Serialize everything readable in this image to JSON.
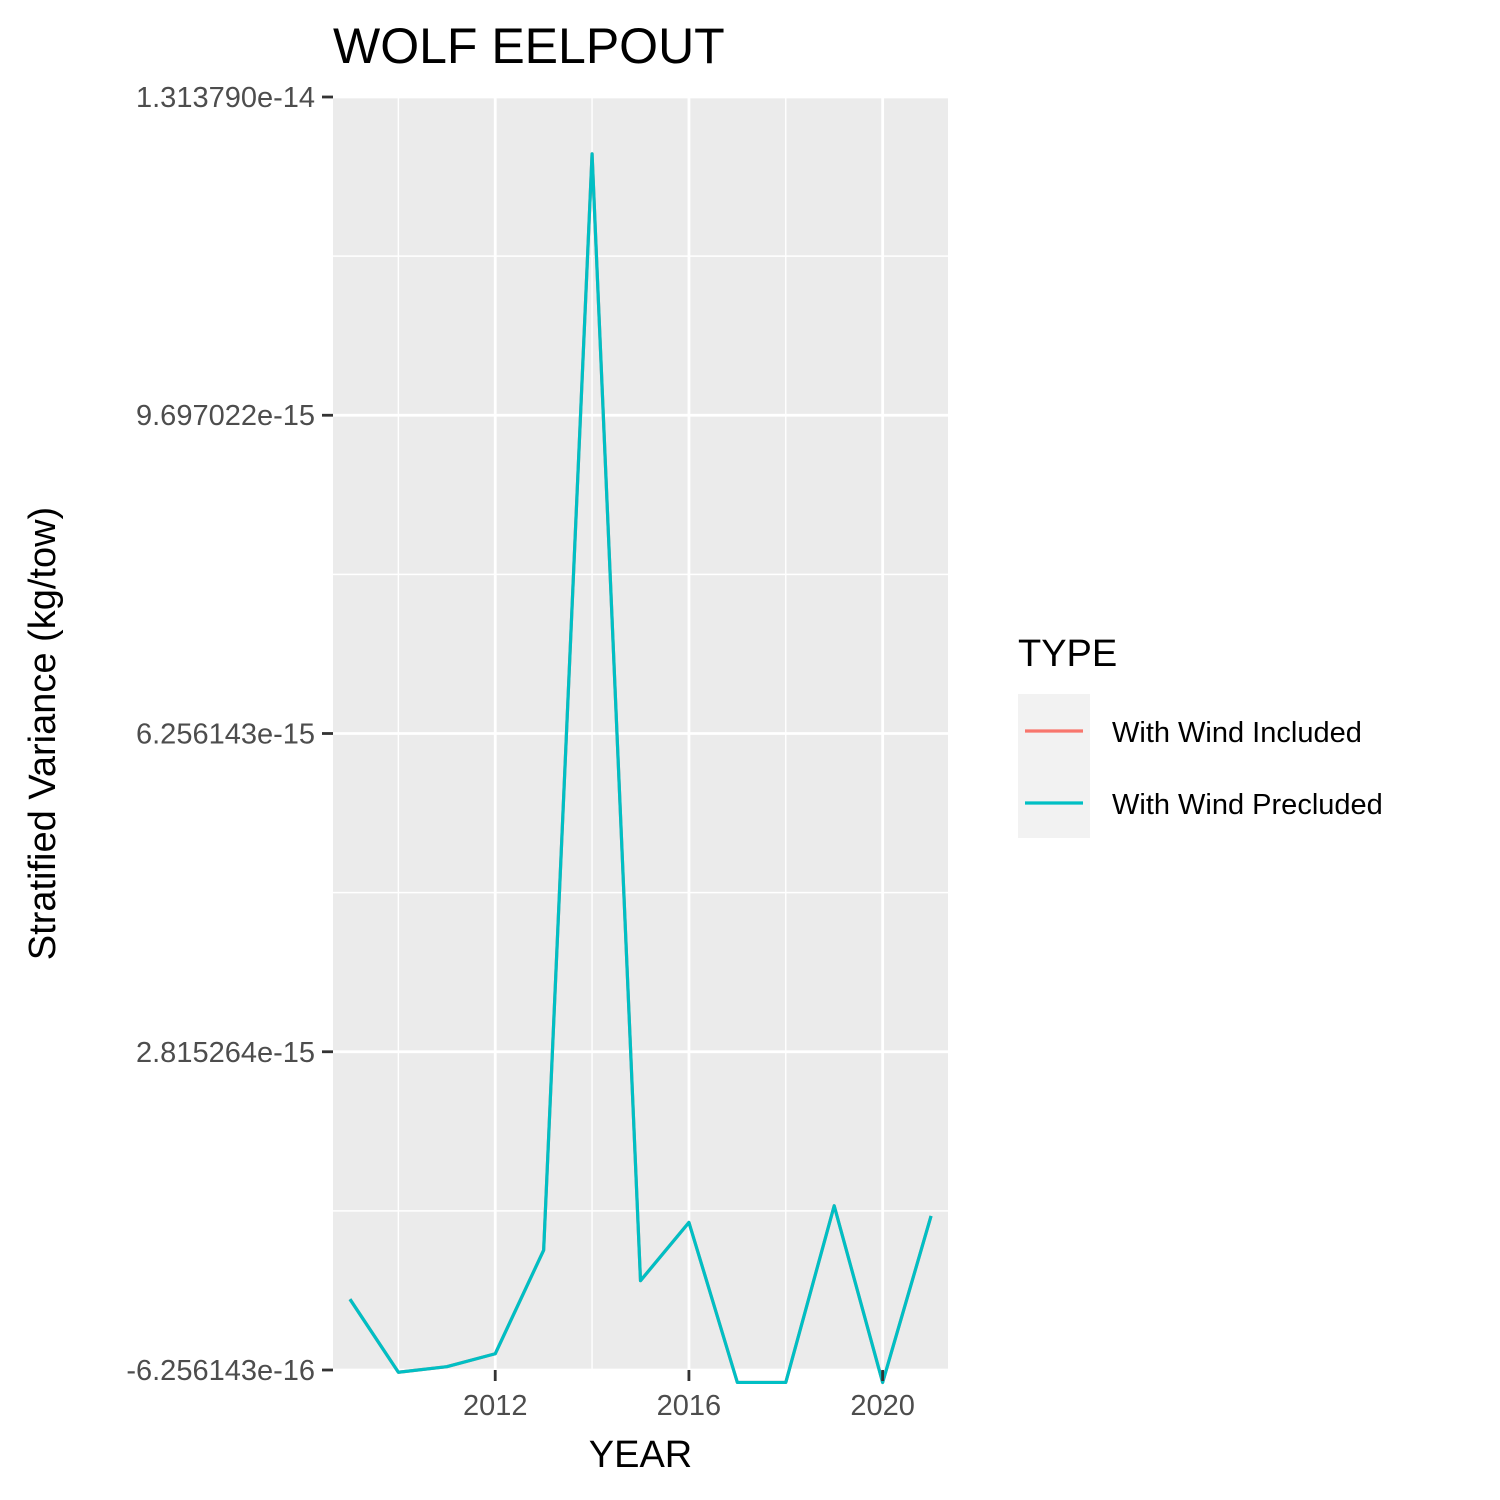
{
  "chart_data": {
    "type": "line",
    "title": "WOLF EELPOUT",
    "xlabel": "YEAR",
    "ylabel": "Stratified Variance (kg/tow)",
    "xlim": [
      2008.65,
      2021.35
    ],
    "ylim": [
      -6.256143e-16,
      1.31379e-14
    ],
    "x_ticks": [
      2012,
      2016,
      2020
    ],
    "x_tick_labels": [
      "2012",
      "2016",
      "2020"
    ],
    "y_ticks": [
      -6.256143e-16,
      2.815264e-15,
      6.256143e-15,
      9.697022e-15,
      1.31379e-14
    ],
    "y_tick_labels": [
      "-6.256143e-16",
      "2.815264e-15",
      "6.256143e-15",
      "9.697022e-15",
      "1.313790e-14"
    ],
    "grid": true,
    "legend": {
      "title": "TYPE",
      "placement": "right",
      "entries": [
        {
          "label": "With Wind Included",
          "color": "#F8766D"
        },
        {
          "label": "With Wind Precluded",
          "color": "#00BFC4"
        }
      ]
    },
    "x": [
      2009,
      2010,
      2011,
      2012,
      2013,
      2014,
      2015,
      2016,
      2017,
      2018,
      2019,
      2020,
      2021
    ],
    "series": [
      {
        "name": "With Wind Included",
        "color": "#F8766D",
        "values": [
          1.4e-16,
          -6.5e-16,
          -5.9e-16,
          -4.5e-16,
          6.7e-16,
          1.2523e-14,
          3.4e-16,
          9.7e-16,
          -7.6e-16,
          -7.6e-16,
          1.15e-15,
          -7.6e-16,
          1.04e-15
        ]
      },
      {
        "name": "With Wind Precluded",
        "color": "#00BFC4",
        "values": [
          1.4e-16,
          -6.5e-16,
          -5.9e-16,
          -4.5e-16,
          6.7e-16,
          1.2523e-14,
          3.4e-16,
          9.7e-16,
          -7.6e-16,
          -7.6e-16,
          1.15e-15,
          -7.6e-16,
          1.04e-15
        ]
      }
    ]
  }
}
